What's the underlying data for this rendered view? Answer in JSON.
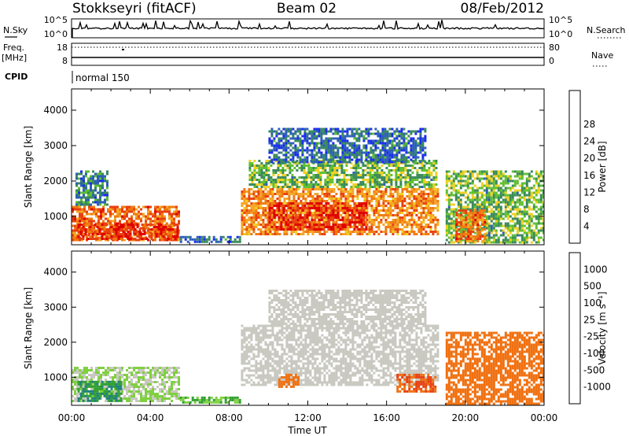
{
  "header": {
    "station": "Stokkseyri (fitACF)",
    "beam": "Beam 02",
    "date": "08/Feb/2012"
  },
  "top_panels": {
    "nsky": {
      "label": "N.Sky",
      "ticks_left": [
        "10^5",
        "10^0"
      ],
      "ticks_right": [
        "10^5",
        "10^0"
      ],
      "right_label": "N.Search"
    },
    "freq": {
      "label_line1": "Freq.",
      "label_line2": "[MHz]",
      "ticks_left": [
        "18",
        "8"
      ],
      "ticks_right": [
        "80",
        "0"
      ],
      "right_label": "Nave"
    },
    "cpid": {
      "label": "CPID",
      "text": "normal 150"
    }
  },
  "chart_data": [
    {
      "type": "heatmap",
      "title": "",
      "quantity": "Power",
      "xlabel": "",
      "ylabel": "Slant Range [km]",
      "yticks": [
        "1000",
        "2000",
        "3000",
        "4000"
      ],
      "ylim": [
        200,
        4600
      ],
      "xlim_hours": [
        0,
        24
      ],
      "colorbar": {
        "label": "Power [dB]",
        "tick_labels": [
          "4",
          "8",
          "12",
          "16",
          "20",
          "24",
          "28"
        ],
        "colors": [
          "#1a2cf0",
          "#2d5fb8",
          "#3a8a5a",
          "#5fbf30",
          "#f0d020",
          "#f5a623",
          "#f07a10",
          "#e84010",
          "#e00000"
        ]
      },
      "regions": [
        {
          "t0": 0.0,
          "t1": 5.5,
          "r0": 300,
          "r1": 1300,
          "level": 24
        },
        {
          "t0": 0.3,
          "t1": 5.4,
          "r0": 350,
          "r1": 800,
          "level": 28
        },
        {
          "t0": 0.2,
          "t1": 1.8,
          "r0": 1300,
          "r1": 2300,
          "level": 8
        },
        {
          "t0": 5.5,
          "t1": 8.5,
          "r0": 250,
          "r1": 450,
          "level": 6
        },
        {
          "t0": 8.6,
          "t1": 18.6,
          "r0": 500,
          "r1": 1800,
          "level": 22
        },
        {
          "t0": 9.0,
          "t1": 18.5,
          "r0": 1800,
          "r1": 2600,
          "level": 12
        },
        {
          "t0": 10.0,
          "t1": 18.0,
          "r0": 2500,
          "r1": 3500,
          "level": 6
        },
        {
          "t0": 10.0,
          "t1": 15.0,
          "r0": 600,
          "r1": 1400,
          "level": 28
        },
        {
          "t0": 19.0,
          "t1": 24.0,
          "r0": 250,
          "r1": 2300,
          "level": 12
        },
        {
          "t0": 19.5,
          "t1": 21.0,
          "r0": 300,
          "r1": 1200,
          "level": 24
        }
      ]
    },
    {
      "type": "heatmap",
      "title": "",
      "quantity": "Velocity",
      "xlabel": "Time UT",
      "ylabel": "Slant Range [km]",
      "yticks": [
        "1000",
        "2000",
        "3000",
        "4000"
      ],
      "ylim": [
        200,
        4600
      ],
      "xticks": [
        "00:00",
        "04:00",
        "08:00",
        "12:00",
        "16:00",
        "20:00",
        "00:00"
      ],
      "xlim_hours": [
        0,
        24
      ],
      "colorbar": {
        "label": "Velocity [m s⁻¹]",
        "tick_labels": [
          "1000",
          "500",
          "100",
          "25",
          "-25",
          "-100",
          "-500",
          "-1000"
        ],
        "colors": [
          "#2040c0",
          "#208080",
          "#30a030",
          "#80d040",
          "#c8c8c0",
          "#f0a020",
          "#f07010",
          "#e84010",
          "#e00000"
        ]
      },
      "regions": [
        {
          "t0": 0.0,
          "t1": 5.5,
          "r0": 300,
          "r1": 1300,
          "level": 25
        },
        {
          "t0": 0.3,
          "t1": 2.5,
          "r0": 350,
          "r1": 900,
          "level": 300
        },
        {
          "t0": 5.5,
          "t1": 8.5,
          "r0": 250,
          "r1": 450,
          "level": 60
        },
        {
          "t0": 8.6,
          "t1": 18.6,
          "r0": 800,
          "r1": 2500,
          "level": 0
        },
        {
          "t0": 10.0,
          "t1": 18.0,
          "r0": 2500,
          "r1": 3500,
          "level": 0
        },
        {
          "t0": 10.5,
          "t1": 11.5,
          "r0": 700,
          "r1": 1100,
          "level": -150
        },
        {
          "t0": 16.5,
          "t1": 18.5,
          "r0": 600,
          "r1": 1100,
          "level": -300
        },
        {
          "t0": 19.0,
          "t1": 24.0,
          "r0": 250,
          "r1": 2300,
          "level": -150
        }
      ]
    }
  ]
}
